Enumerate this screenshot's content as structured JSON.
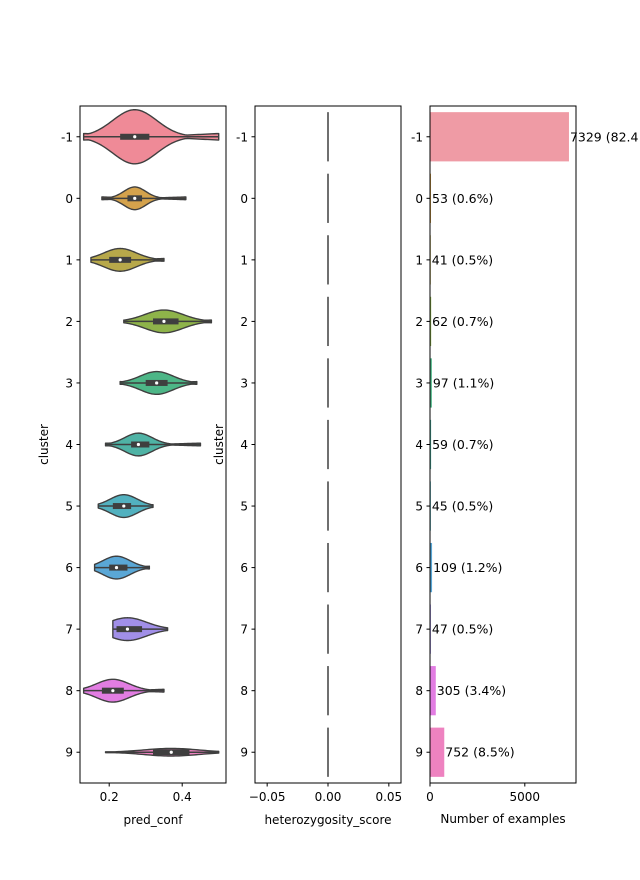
{
  "chart_data": [
    {
      "type": "violin",
      "xlabel": "pred_conf",
      "ylabel": "cluster",
      "xlim": [
        0.12,
        0.52
      ],
      "xticks": [
        0.2,
        0.4
      ],
      "xtick_labels": [
        "0.2",
        "0.4"
      ],
      "categories": [
        "-1",
        "0",
        "1",
        "2",
        "3",
        "4",
        "5",
        "6",
        "7",
        "8",
        "9"
      ],
      "colors": [
        "#ef8a97",
        "#d4a24c",
        "#b7a84a",
        "#8eb34a",
        "#4db687",
        "#4fb3a5",
        "#52b1bf",
        "#5aa7d6",
        "#a18fe8",
        "#e27de2",
        "#ee82c0"
      ],
      "stats": [
        {
          "min": 0.13,
          "q1": 0.23,
          "median": 0.27,
          "q3": 0.31,
          "max": 0.5
        },
        {
          "min": 0.18,
          "q1": 0.25,
          "median": 0.27,
          "q3": 0.29,
          "max": 0.41
        },
        {
          "min": 0.15,
          "q1": 0.2,
          "median": 0.23,
          "q3": 0.26,
          "max": 0.35
        },
        {
          "min": 0.24,
          "q1": 0.32,
          "median": 0.35,
          "q3": 0.39,
          "max": 0.48
        },
        {
          "min": 0.23,
          "q1": 0.3,
          "median": 0.33,
          "q3": 0.36,
          "max": 0.44
        },
        {
          "min": 0.19,
          "q1": 0.26,
          "median": 0.28,
          "q3": 0.31,
          "max": 0.45
        },
        {
          "min": 0.17,
          "q1": 0.21,
          "median": 0.24,
          "q3": 0.26,
          "max": 0.32
        },
        {
          "min": 0.16,
          "q1": 0.2,
          "median": 0.22,
          "q3": 0.25,
          "max": 0.31
        },
        {
          "min": 0.21,
          "q1": 0.22,
          "median": 0.25,
          "q3": 0.29,
          "max": 0.36
        },
        {
          "min": 0.13,
          "q1": 0.18,
          "median": 0.21,
          "q3": 0.24,
          "max": 0.35
        },
        {
          "min": 0.19,
          "q1": 0.32,
          "median": 0.37,
          "q3": 0.42,
          "max": 0.5
        }
      ]
    },
    {
      "type": "violin",
      "xlabel": "heterozygosity_score",
      "ylabel": "cluster",
      "xlim": [
        -0.06,
        0.06
      ],
      "xticks": [
        -0.05,
        0,
        0.05
      ],
      "xtick_labels": [
        "−0.05",
        "0.00",
        "0.05"
      ],
      "categories": [
        "-1",
        "0",
        "1",
        "2",
        "3",
        "4",
        "5",
        "6",
        "7",
        "8",
        "9"
      ],
      "values": [
        0,
        0,
        0,
        0,
        0,
        0,
        0,
        0,
        0,
        0,
        0
      ]
    },
    {
      "type": "bar",
      "orientation": "horizontal",
      "xlabel": "Number of examples",
      "xlim": [
        0,
        7700
      ],
      "xticks": [
        0,
        5000
      ],
      "xtick_labels": [
        "0",
        "5000"
      ],
      "categories": [
        "-1",
        "0",
        "1",
        "2",
        "3",
        "4",
        "5",
        "6",
        "7",
        "8",
        "9"
      ],
      "values": [
        7329,
        53,
        41,
        62,
        97,
        59,
        45,
        109,
        47,
        305,
        752
      ],
      "data_labels": [
        "7329 (82.4",
        "53 (0.6%)",
        "41 (0.5%)",
        "62 (0.7%)",
        "97 (1.1%)",
        "59 (0.7%)",
        "45 (0.5%)",
        "109 (1.2%)",
        "47 (0.5%)",
        "305 (3.4%)",
        "752 (8.5%)"
      ],
      "colors": [
        "#ef9ba5",
        "#d4a24c",
        "#b7a84a",
        "#8eb34a",
        "#4db687",
        "#4fb3a5",
        "#52b1bf",
        "#5aa7d6",
        "#a18fe8",
        "#e27de2",
        "#ee82c0"
      ]
    }
  ]
}
